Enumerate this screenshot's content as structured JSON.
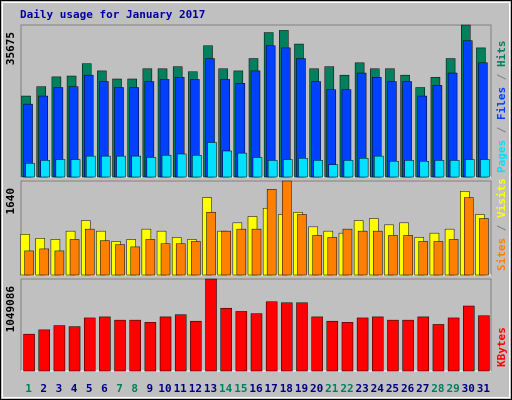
{
  "chart_data": [
    {
      "type": "bar",
      "title": "Daily usage for January 2017",
      "title_color": "#0000a0",
      "legend_separator": " / ",
      "ylim": [
        0,
        35675
      ],
      "yticks": [
        35675
      ],
      "series": [
        {
          "name": "Hits",
          "color": "#00805c",
          "values": [
            19000,
            21200,
            23500,
            23700,
            26600,
            24900,
            23000,
            23000,
            25400,
            25400,
            25900,
            24700,
            30800,
            25400,
            24900,
            27800,
            33900,
            34400,
            31200,
            25400,
            25900,
            23900,
            26800,
            25400,
            25400,
            23900,
            21000,
            23400,
            27800,
            35675,
            30300
          ]
        },
        {
          "name": "Files",
          "color": "#0040ff",
          "values": [
            17100,
            19000,
            21000,
            21200,
            23900,
            22400,
            21000,
            21000,
            22400,
            22900,
            23400,
            22900,
            27800,
            22900,
            22000,
            24900,
            30800,
            30300,
            27800,
            22400,
            20500,
            20500,
            24400,
            23400,
            22400,
            22400,
            19000,
            21500,
            24400,
            32000,
            26800
          ]
        },
        {
          "name": "Pages",
          "color": "#00e0ff",
          "values": [
            3200,
            3900,
            4100,
            4100,
            4900,
            4900,
            4900,
            4900,
            4600,
            5100,
            5400,
            5100,
            8100,
            6100,
            5600,
            4600,
            3900,
            4100,
            4400,
            3900,
            2900,
            3900,
            4400,
            4900,
            3700,
            3900,
            3700,
            3900,
            3900,
            4100,
            4100
          ]
        }
      ]
    },
    {
      "type": "bar",
      "ylim": [
        0,
        1640
      ],
      "yticks": [
        1640
      ],
      "series": [
        {
          "name": "Visits",
          "color": "#ffff00",
          "values": [
            710,
            640,
            620,
            765,
            950,
            765,
            585,
            620,
            800,
            765,
            655,
            620,
            1350,
            765,
            910,
            1020,
            1165,
            1055,
            1095,
            840,
            765,
            730,
            950,
            985,
            875,
            910,
            655,
            730,
            800,
            1460,
            1055
          ]
        },
        {
          "name": "Sites",
          "color": "#ff8000",
          "values": [
            420,
            455,
            420,
            620,
            800,
            600,
            530,
            490,
            620,
            545,
            545,
            585,
            1095,
            765,
            800,
            800,
            1495,
            1640,
            1055,
            690,
            655,
            800,
            765,
            765,
            690,
            690,
            585,
            585,
            620,
            1350,
            985
          ]
        }
      ]
    },
    {
      "type": "bar",
      "ylim": [
        0,
        1049086
      ],
      "yticks": [
        1049086
      ],
      "categories": [
        "1",
        "2",
        "3",
        "4",
        "5",
        "6",
        "7",
        "8",
        "9",
        "10",
        "11",
        "12",
        "13",
        "14",
        "15",
        "16",
        "17",
        "18",
        "19",
        "20",
        "21",
        "22",
        "23",
        "24",
        "25",
        "26",
        "27",
        "28",
        "29",
        "30",
        "31"
      ],
      "category_colors": [
        "#00805c",
        "#000080",
        "#000080",
        "#000080",
        "#000080",
        "#000080",
        "#00805c",
        "#00805c",
        "#000080",
        "#000080",
        "#000080",
        "#000080",
        "#000080",
        "#00805c",
        "#00805c",
        "#000080",
        "#000080",
        "#000080",
        "#000080",
        "#000080",
        "#00805c",
        "#00805c",
        "#000080",
        "#000080",
        "#000080",
        "#000080",
        "#000080",
        "#00805c",
        "#00805c",
        "#000080",
        "#000080"
      ],
      "series": [
        {
          "name": "KBytes",
          "color": "#ff0000",
          "values": [
            420000,
            469000,
            518000,
            506000,
            605000,
            617000,
            580000,
            580000,
            555000,
            617000,
            642000,
            568000,
            1049086,
            716000,
            679000,
            654000,
            790000,
            778000,
            778000,
            617000,
            568000,
            555000,
            605000,
            617000,
            580000,
            580000,
            617000,
            531000,
            605000,
            741000,
            630000
          ]
        }
      ]
    }
  ]
}
